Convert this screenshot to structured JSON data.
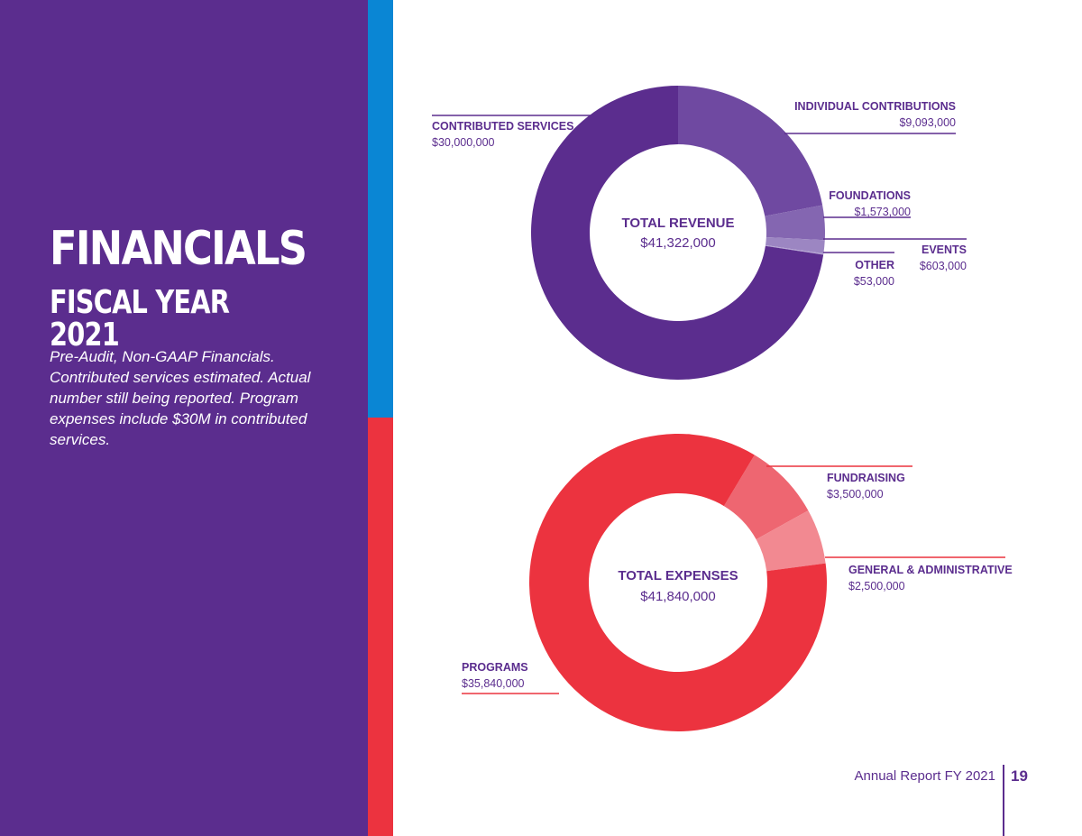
{
  "page": {
    "title": "FINANCIALS",
    "subtitle": "FISCAL YEAR 2021",
    "note": "Pre-Audit, Non-GAAP Financials. Contributed services estimated. Actual number still being reported. Program expenses include $30M in contributed services.",
    "footer_text": "Annual Report FY 2021",
    "page_number": "19"
  },
  "colors": {
    "purple": "#5b2d8e",
    "blue": "#0a86d4",
    "red": "#ec333f"
  },
  "chart_data": [
    {
      "type": "pie",
      "center_title": "TOTAL REVENUE",
      "center_value": "$41,322,000",
      "total": 41322000,
      "slices": [
        {
          "label": "INDIVIDUAL CONTRIBUTIONS",
          "value": 9093000,
          "value_label": "$9,093,000",
          "color": "#6f49a1"
        },
        {
          "label": "FOUNDATIONS",
          "value": 1573000,
          "value_label": "$1,573,000",
          "color": "#8466b1"
        },
        {
          "label": "EVENTS",
          "value": 603000,
          "value_label": "$603,000",
          "color": "#9c86c2"
        },
        {
          "label": "OTHER",
          "value": 53000,
          "value_label": "$53,000",
          "color": "#b3a3d2"
        },
        {
          "label": "CONTRIBUTED SERVICES",
          "value": 30000000,
          "value_label": "$30,000,000",
          "color": "#5b2d8e"
        }
      ]
    },
    {
      "type": "pie",
      "center_title": "TOTAL EXPENSES",
      "center_value": "$41,840,000",
      "total": 41840000,
      "slices": [
        {
          "label": "FUNDRAISING",
          "value": 3500000,
          "value_label": "$3,500,000",
          "color": "#ee6671"
        },
        {
          "label": "GENERAL & ADMINISTRATIVE",
          "value": 2500000,
          "value_label": "$2,500,000",
          "color": "#f28991"
        },
        {
          "label": "PROGRAMS",
          "value": 35840000,
          "value_label": "$35,840,000",
          "color": "#ec333f"
        }
      ]
    }
  ]
}
